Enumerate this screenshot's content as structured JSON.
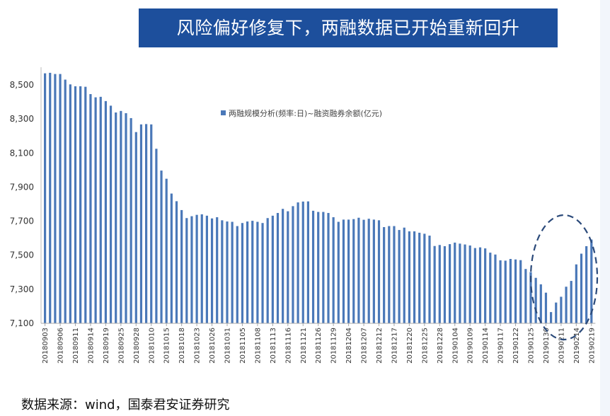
{
  "banner": {
    "title": "风险偏好修复下，两融数据已开始重新回升"
  },
  "footer": {
    "source": "数据来源：wind，国泰君安证券研究"
  },
  "colors": {
    "banner": "#1d4f9c",
    "bar": "#4a78b8",
    "annotation": "#2b4a7a"
  },
  "chart_data": {
    "type": "bar",
    "title": "",
    "legend": {
      "label": "两融规模分析(频率:日)~融资融券余额(亿元)",
      "placement": "top-center"
    },
    "xlabel": "",
    "ylabel": "",
    "ylim": [
      7100,
      8600
    ],
    "yticks": [
      "7,100",
      "7,300",
      "7,500",
      "7,700",
      "7,900",
      "8,100",
      "8,300",
      "8,500"
    ],
    "ytick_values": [
      7100,
      7300,
      7500,
      7700,
      7900,
      8100,
      8300,
      8500
    ],
    "grid": false,
    "xtick_labels": [
      "20180903",
      "20180906",
      "20180911",
      "20180914",
      "20180919",
      "20180925",
      "20180928",
      "20181010",
      "20181015",
      "20181018",
      "20181023",
      "20181026",
      "20181031",
      "20181105",
      "20181108",
      "20181113",
      "20181116",
      "20181121",
      "20181126",
      "20181129",
      "20181204",
      "20181207",
      "20181212",
      "20181217",
      "20181220",
      "20181225",
      "20181228",
      "20190104",
      "20190109",
      "20190114",
      "20190117",
      "20190122",
      "20190125",
      "20190130",
      "20190211",
      "20190214",
      "20190219"
    ],
    "xtick_every": 3,
    "values": [
      8568,
      8571,
      8564,
      8564,
      8531,
      8503,
      8492,
      8492,
      8489,
      8446,
      8427,
      8430,
      8405,
      8378,
      8338,
      8347,
      8334,
      8305,
      8223,
      8268,
      8270,
      8268,
      8125,
      7997,
      7949,
      7862,
      7817,
      7765,
      7718,
      7729,
      7737,
      7740,
      7732,
      7716,
      7723,
      7705,
      7698,
      7696,
      7671,
      7689,
      7698,
      7702,
      7696,
      7689,
      7718,
      7732,
      7748,
      7772,
      7758,
      7788,
      7810,
      7815,
      7816,
      7761,
      7754,
      7754,
      7748,
      7723,
      7696,
      7709,
      7709,
      7712,
      7720,
      7708,
      7714,
      7709,
      7705,
      7665,
      7671,
      7671,
      7648,
      7662,
      7640,
      7640,
      7632,
      7626,
      7615,
      7554,
      7560,
      7553,
      7565,
      7574,
      7568,
      7563,
      7557,
      7542,
      7546,
      7540,
      7515,
      7504,
      7470,
      7468,
      7478,
      7475,
      7471,
      7419,
      7401,
      7367,
      7329,
      7280,
      7166,
      7222,
      7256,
      7315,
      7349,
      7446,
      7509,
      7553,
      7592
    ],
    "annotation": {
      "shape": "dashed-ellipse",
      "highlights": "20190125-20190219"
    }
  }
}
